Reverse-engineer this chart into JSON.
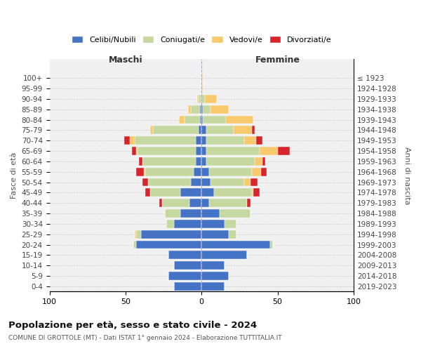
{
  "age_groups": [
    "0-4",
    "5-9",
    "10-14",
    "15-19",
    "20-24",
    "25-29",
    "30-34",
    "35-39",
    "40-44",
    "45-49",
    "50-54",
    "55-59",
    "60-64",
    "65-69",
    "70-74",
    "75-79",
    "80-84",
    "85-89",
    "90-94",
    "95-99",
    "100+"
  ],
  "birth_years": [
    "2019-2023",
    "2014-2018",
    "2009-2013",
    "2004-2008",
    "1999-2003",
    "1994-1998",
    "1989-1993",
    "1984-1988",
    "1979-1983",
    "1974-1978",
    "1969-1973",
    "1964-1968",
    "1959-1963",
    "1954-1958",
    "1949-1953",
    "1944-1948",
    "1939-1943",
    "1934-1938",
    "1929-1933",
    "1924-1928",
    "≤ 1923"
  ],
  "males": {
    "celibi": [
      18,
      22,
      18,
      22,
      43,
      40,
      18,
      14,
      8,
      14,
      7,
      5,
      4,
      4,
      4,
      2,
      1,
      1,
      0,
      0,
      0
    ],
    "coniugati": [
      0,
      0,
      0,
      0,
      2,
      3,
      5,
      10,
      18,
      20,
      28,
      32,
      35,
      38,
      40,
      30,
      10,
      6,
      2,
      0,
      0
    ],
    "vedovi": [
      0,
      0,
      0,
      0,
      0,
      1,
      0,
      0,
      0,
      0,
      0,
      1,
      0,
      1,
      3,
      2,
      4,
      2,
      1,
      0,
      0
    ],
    "divorziati": [
      0,
      0,
      0,
      0,
      0,
      0,
      0,
      0,
      2,
      3,
      4,
      5,
      2,
      3,
      4,
      0,
      0,
      0,
      0,
      0,
      0
    ]
  },
  "females": {
    "nubili": [
      15,
      18,
      15,
      30,
      45,
      18,
      15,
      12,
      5,
      8,
      6,
      5,
      3,
      3,
      3,
      3,
      1,
      1,
      0,
      0,
      0
    ],
    "coniugate": [
      0,
      0,
      0,
      0,
      2,
      5,
      8,
      20,
      25,
      25,
      22,
      28,
      32,
      35,
      25,
      18,
      15,
      5,
      2,
      0,
      0
    ],
    "vedove": [
      0,
      0,
      0,
      0,
      0,
      0,
      0,
      0,
      0,
      1,
      4,
      6,
      5,
      12,
      8,
      12,
      18,
      12,
      8,
      1,
      1
    ],
    "divorziate": [
      0,
      0,
      0,
      0,
      0,
      0,
      0,
      0,
      2,
      4,
      5,
      4,
      2,
      8,
      4,
      2,
      0,
      0,
      0,
      0,
      0
    ]
  },
  "color_celibi": "#4472c4",
  "color_coniugati": "#c5d8a0",
  "color_vedovi": "#f9c96d",
  "color_divorziati": "#d9232d",
  "xlim": 100,
  "title": "Popolazione per età, sesso e stato civile - 2024",
  "subtitle": "COMUNE DI GROTTOLE (MT) - Dati ISTAT 1° gennaio 2024 - Elaborazione TUTTITALIA.IT",
  "ylabel_left": "Fasce di età",
  "ylabel_right": "Anni di nascita",
  "xlabel_left": "Maschi",
  "xlabel_right": "Femmine"
}
